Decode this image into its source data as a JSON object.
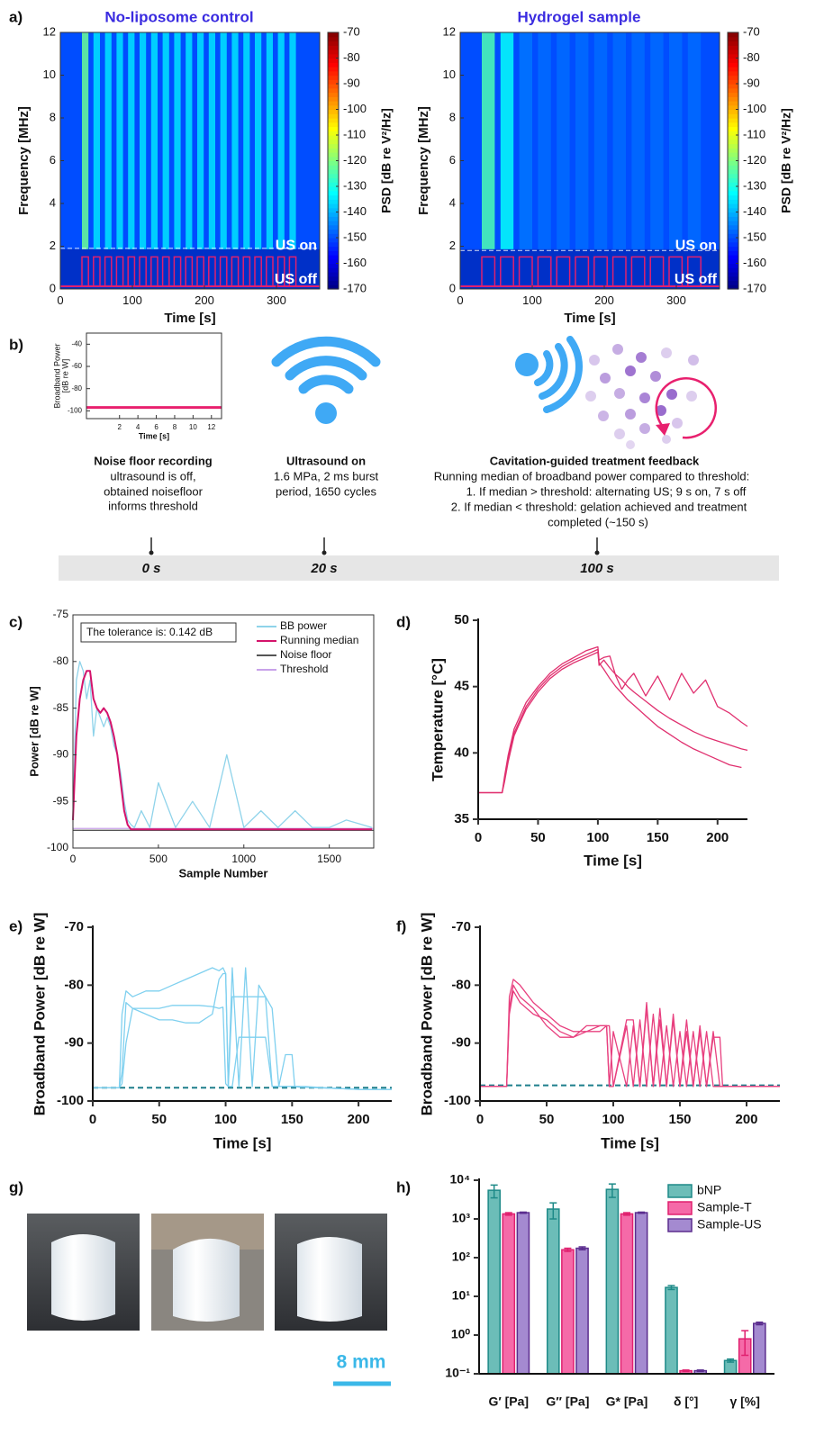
{
  "panel_labels": [
    "a)",
    "b)",
    "c)",
    "d)",
    "e)",
    "f)",
    "g)",
    "h)"
  ],
  "panel_b": {
    "steps": [
      {
        "title": "Noise floor recording",
        "lines": [
          "ultrasound is off,",
          "obtained noisefloor",
          "informs threshold"
        ],
        "time": "0 s"
      },
      {
        "title": "Ultrasound on",
        "lines": [
          "1.6 MPa, 2 ms burst",
          "period, 1650 cycles"
        ],
        "time": "20 s"
      },
      {
        "title": "Cavitation-guided treatment feedback",
        "lines": [
          "Running median of broadband power compared to threshold:",
          "1.  If median > threshold: alternating US; 9 s on, 7 s off",
          "2.  If median < threshold: gelation achieved and treatment",
          "completed (~150 s)"
        ],
        "time": "100 s"
      }
    ]
  },
  "panel_g": {
    "scale_bar": "8 mm"
  },
  "chart_data": [
    {
      "type": "spectrogram",
      "title": "No-liposome control",
      "xlabel": "Time [s]",
      "ylabel": "Frequency [MHz]",
      "xlim": [
        0,
        360
      ],
      "xticks": [
        0,
        100,
        200,
        300
      ],
      "ylim": [
        0,
        12
      ],
      "yticks": [
        0,
        2,
        4,
        6,
        8,
        10,
        12
      ],
      "colorbar_label": "PSD [dB re V²/Hz]",
      "clim": [
        -170,
        -70
      ],
      "cticks": [
        -70,
        -80,
        -90,
        -100,
        -110,
        -120,
        -130,
        -140,
        -150,
        -160,
        -170
      ],
      "background_psd": -150,
      "marker_lines": [
        1.9,
        12
      ],
      "on_label": "US on",
      "off_label": "US off",
      "bursts": [
        [
          30,
          39
        ],
        [
          46,
          55
        ],
        [
          62,
          71
        ],
        [
          78,
          87
        ],
        [
          94,
          103
        ],
        [
          110,
          119
        ],
        [
          126,
          135
        ],
        [
          142,
          151
        ],
        [
          158,
          167
        ],
        [
          174,
          183
        ],
        [
          190,
          199
        ],
        [
          206,
          215
        ],
        [
          222,
          231
        ],
        [
          238,
          247
        ],
        [
          254,
          263
        ],
        [
          270,
          279
        ],
        [
          286,
          295
        ],
        [
          302,
          311
        ],
        [
          318,
          327
        ]
      ],
      "psd": [
        -122,
        -135,
        -135,
        -135,
        -135,
        -135,
        -135,
        -135,
        -135,
        -135,
        -135,
        -135,
        -135,
        -135,
        -135,
        -135,
        -135,
        -135,
        -135
      ]
    },
    {
      "type": "spectrogram",
      "title": "Hydrogel sample",
      "xlabel": "Time [s]",
      "ylabel": "Frequency [MHz]",
      "xlim": [
        0,
        360
      ],
      "xticks": [
        0,
        100,
        200,
        300
      ],
      "ylim": [
        0,
        12
      ],
      "yticks": [
        0,
        2,
        4,
        6,
        8,
        10,
        12
      ],
      "colorbar_label": "PSD [dB re V²/Hz]",
      "clim": [
        -170,
        -70
      ],
      "cticks": [
        -70,
        -80,
        -90,
        -100,
        -110,
        -120,
        -130,
        -140,
        -150,
        -160,
        -170
      ],
      "background_psd": -150,
      "marker_lines": [
        1.8,
        12
      ],
      "on_label": "US on",
      "off_label": "US off",
      "bursts": [
        [
          30,
          48
        ],
        [
          56,
          74
        ],
        [
          82,
          100
        ],
        [
          108,
          126
        ],
        [
          134,
          152
        ],
        [
          160,
          178
        ],
        [
          186,
          204
        ],
        [
          212,
          230
        ],
        [
          238,
          256
        ],
        [
          264,
          282
        ],
        [
          290,
          308
        ],
        [
          316,
          334
        ]
      ],
      "psd": [
        -125,
        -132,
        -146,
        -147,
        -147,
        -147,
        -147,
        -147,
        -147,
        -147,
        -147,
        -147
      ]
    },
    {
      "type": "line",
      "xlabel": "Time [s]",
      "ylabel_lines": [
        "Broadband Power",
        "[dB re W]"
      ],
      "xlim": [
        -1.6,
        13.1
      ],
      "xticks": [
        2,
        4,
        6,
        8,
        10,
        12
      ],
      "ylim": [
        -107,
        -30
      ],
      "yticks": [
        -40,
        -60,
        -80,
        -100
      ],
      "reference_lines": [
        {
          "color": "#e8206e",
          "value": -97,
          "width": 3
        }
      ]
    },
    {
      "type": "line",
      "xlabel": "Sample Number",
      "ylabel": "Power [dB re W]",
      "xlim": [
        0,
        1760
      ],
      "xticks": [
        0,
        500,
        1000,
        1500
      ],
      "ylim": [
        -100,
        -75
      ],
      "yticks": [
        -100,
        -95,
        -90,
        -85,
        -80,
        -75
      ],
      "annotation": "The tolerance is: 0.142 dB",
      "legend": "upper right",
      "x": [
        0,
        20,
        40,
        60,
        80,
        100,
        120,
        140,
        160,
        180,
        200,
        220,
        240,
        260,
        280,
        300,
        320,
        340,
        360,
        400,
        450,
        500,
        600,
        700,
        800,
        900,
        1000,
        1100,
        1200,
        1300,
        1400,
        1500,
        1600,
        1750
      ],
      "series": [
        {
          "name": "BB power",
          "color": "#8fd3ea",
          "values": [
            -97,
            -82,
            -80,
            -81,
            -84,
            -82,
            -88,
            -85,
            -86,
            -87,
            -86,
            -87,
            -89,
            -90,
            -92,
            -95,
            -97,
            -97.5,
            -97.8,
            -96,
            -97.8,
            -93,
            -97.8,
            -95,
            -97.8,
            -90,
            -97.8,
            -96,
            -97.8,
            -96,
            -97.8,
            -97.8,
            -97,
            -97.8
          ]
        },
        {
          "name": "Running median",
          "color": "#d4136b",
          "values": [
            -97,
            -88,
            -84,
            -82,
            -81,
            -81,
            -84,
            -85,
            -85.5,
            -85,
            -85.5,
            -86.5,
            -88,
            -90,
            -93,
            -96,
            -97.5,
            -98,
            -98,
            -98,
            -98,
            -98,
            -98,
            -98,
            -98,
            -98,
            -98,
            -98,
            -98,
            -98,
            -98,
            -98,
            -98,
            -98
          ]
        }
      ],
      "reference_lines": [
        {
          "name": "Noise floor",
          "color": "#555555",
          "value": -98.1
        },
        {
          "name": "Threshold",
          "color": "#c8a2ea",
          "value": -97.9
        }
      ]
    },
    {
      "type": "line",
      "xlabel": "Time [s]",
      "ylabel": "Temperature [°C]",
      "xlim": [
        0,
        225
      ],
      "xticks": [
        0,
        50,
        100,
        150,
        200
      ],
      "ylim": [
        35,
        50
      ],
      "yticks": [
        35,
        40,
        45,
        50
      ],
      "x": [
        0,
        10,
        20,
        22,
        25,
        30,
        35,
        40,
        50,
        60,
        70,
        80,
        90,
        100,
        101,
        105,
        110,
        115,
        120,
        125,
        130,
        140,
        150,
        160,
        170,
        180,
        190,
        200,
        210,
        220,
        225
      ],
      "series": [
        {
          "color": "#e0306f",
          "values": [
            37,
            37,
            37,
            38,
            39.5,
            41.5,
            42.5,
            43.5,
            44.8,
            45.8,
            46.5,
            47,
            47.4,
            47.8,
            46.8,
            46.3,
            45.6,
            45,
            44.5,
            44,
            43.6,
            42.8,
            42,
            41.4,
            40.8,
            40.3,
            39.9,
            39.5,
            39.1,
            38.9,
            null
          ]
        },
        {
          "color": "#e0306f",
          "values": [
            37,
            37,
            37,
            37.8,
            39.3,
            41.3,
            42.3,
            43.3,
            44.6,
            45.6,
            46.3,
            46.8,
            47.2,
            47.6,
            46.6,
            47,
            46.4,
            45.9,
            45.5,
            45,
            44.6,
            43.9,
            43.2,
            42.6,
            42.1,
            41.6,
            41.2,
            40.9,
            40.6,
            40.3,
            40.2
          ]
        },
        {
          "color": "#e0306f",
          "values": [
            37,
            37,
            37,
            38.2,
            39.8,
            41.8,
            42.8,
            43.8,
            45,
            46,
            46.7,
            47.2,
            47.7,
            48,
            47,
            47.2,
            47.3,
            45.8,
            44.8,
            45.5,
            46,
            44.3,
            45.8,
            44,
            46,
            44.5,
            45.5,
            43.5,
            43,
            42.3,
            42
          ]
        }
      ]
    },
    {
      "type": "line",
      "xlabel": "Time [s]",
      "ylabel": "Broadband Power [dB re W]",
      "xlim": [
        0,
        225
      ],
      "xticks": [
        0,
        50,
        100,
        150,
        200
      ],
      "ylim": [
        -100,
        -70
      ],
      "yticks": [
        -100,
        -90,
        -80,
        -70
      ],
      "x": [
        0,
        20,
        22,
        25,
        30,
        40,
        50,
        60,
        70,
        80,
        90,
        95,
        98,
        100,
        102,
        105,
        110,
        115,
        120,
        125,
        130,
        135,
        140,
        145,
        150,
        152,
        155,
        160,
        180,
        200,
        225
      ],
      "series": [
        {
          "color": "#7fd0ef",
          "values": [
            -97.7,
            -97.7,
            -85,
            -81,
            -82,
            -81,
            -81,
            -80,
            -79,
            -78,
            -77,
            -77.5,
            -77,
            -78,
            -97.5,
            -77,
            -97.5,
            -77,
            -97.5,
            -80,
            -82,
            -97.5,
            -97.5,
            -97.5,
            -97.5,
            -97.5,
            -97.5,
            -97.5,
            -97.8,
            -98,
            -98
          ]
        },
        {
          "color": "#7fd0ef",
          "values": [
            -97.7,
            -97.7,
            -95,
            -83,
            -84,
            -84,
            -84,
            -83.5,
            -83.5,
            -83.5,
            -83.7,
            -84,
            -83.8,
            -97,
            -97.5,
            -97.5,
            -89,
            -89,
            -89,
            -89,
            -89,
            -97.5,
            -97.5,
            -92,
            -92,
            -97.5,
            -97.6,
            -97.6,
            -97.8,
            -98,
            -98
          ]
        },
        {
          "color": "#7fd0ef",
          "values": [
            -97.7,
            -97.7,
            -97,
            -90,
            -84,
            -85,
            -86,
            -86,
            -86.5,
            -86.5,
            -85,
            -79,
            -78,
            -78,
            -97.5,
            -82,
            -82,
            -82,
            -82,
            -82,
            -82,
            -84,
            -97.5,
            -97.5,
            -97.5,
            -97.5,
            -97.5,
            -97.6,
            -97.8,
            -98,
            -98
          ]
        }
      ],
      "reference_lines": [
        {
          "color": "#1f7f8c",
          "value": -97.7,
          "dashed": true,
          "width": 2
        }
      ]
    },
    {
      "type": "line",
      "xlabel": "Time [s]",
      "ylabel": "Broadband Power [dB re W]",
      "xlim": [
        0,
        225
      ],
      "xticks": [
        0,
        50,
        100,
        150,
        200
      ],
      "ylim": [
        -100,
        -70
      ],
      "yticks": [
        -100,
        -90,
        -80,
        -70
      ],
      "x": [
        0,
        20,
        22,
        25,
        30,
        40,
        50,
        60,
        70,
        80,
        90,
        95,
        97,
        100,
        110,
        115,
        120,
        125,
        130,
        135,
        140,
        145,
        150,
        155,
        160,
        165,
        170,
        175,
        180,
        182,
        200,
        225
      ],
      "series": [
        {
          "color": "#e8407f",
          "values": [
            -97.5,
            -97.5,
            -82,
            -79,
            -80,
            -83,
            -85,
            -87,
            -88,
            -88,
            -88,
            -87,
            -97.5,
            -88,
            -97.5,
            -87,
            -97.5,
            -84,
            -97.5,
            -86,
            -97.5,
            -86,
            -97.5,
            -88,
            -97.5,
            -88,
            -97.5,
            -89,
            -89,
            -97.5,
            -97.5,
            -97.5
          ]
        },
        {
          "color": "#e8407f",
          "values": [
            -97.5,
            -97.5,
            -85,
            -81,
            -83,
            -85,
            -86,
            -88,
            -89,
            -88,
            -87,
            -87,
            -87,
            -97.5,
            -87,
            -97.5,
            -86,
            -97.5,
            -85,
            -97.5,
            -87,
            -97.5,
            -88,
            -97.5,
            -88,
            -97.5,
            -88,
            -97.5,
            -97.5,
            -97.5,
            -97.5,
            -97.5
          ]
        },
        {
          "color": "#e8407f",
          "values": [
            -97.5,
            -97.5,
            -84,
            -80,
            -82,
            -84,
            -87,
            -89,
            -89,
            -87,
            -87,
            -87,
            -97.5,
            -97.5,
            -86,
            -86,
            -97.5,
            -83,
            -97.5,
            -84,
            -97.5,
            -85,
            -97.5,
            -86,
            -97.5,
            -87,
            -97.5,
            -88,
            -97.5,
            -97.5,
            -97.5,
            -97.5
          ]
        }
      ],
      "reference_lines": [
        {
          "color": "#1f7f8c",
          "value": -97.3,
          "dashed": true,
          "width": 2
        }
      ]
    },
    {
      "type": "bar",
      "log_y": true,
      "legend": "upper right",
      "categories": [
        "G′ [Pa]",
        "G″ [Pa]",
        "G* [Pa]",
        "δ [°]",
        "γ [%]"
      ],
      "ylim": [
        0.1,
        10000
      ],
      "yticks": [
        {
          "value": 10000,
          "label": "10⁴"
        },
        {
          "value": 1000,
          "label": "10³"
        },
        {
          "value": 100,
          "label": "10²"
        },
        {
          "value": 10,
          "label": "10¹"
        },
        {
          "value": 1,
          "label": "10⁰"
        },
        {
          "value": 0.1,
          "label": "10⁻¹"
        }
      ],
      "series": [
        {
          "name": "bNP",
          "color": "#6cbdb8",
          "edge_color": "#1e8a88",
          "values": [
            5500,
            1800,
            5800,
            17,
            0.22
          ],
          "errors": [
            2000,
            800,
            2200,
            2,
            0.02
          ]
        },
        {
          "name": "Sample-T",
          "color": "#f56aa8",
          "edge_color": "#e0206f",
          "values": [
            1350,
            160,
            1350,
            0.12,
            0.8
          ],
          "errors": [
            100,
            15,
            100,
            0.005,
            0.5
          ]
        },
        {
          "name": "Sample-US",
          "color": "#a48ad0",
          "edge_color": "#5b2d8e",
          "values": [
            1450,
            175,
            1450,
            0.12,
            2.0
          ],
          "errors": [
            50,
            15,
            50,
            0.005,
            0.15
          ]
        }
      ]
    }
  ]
}
